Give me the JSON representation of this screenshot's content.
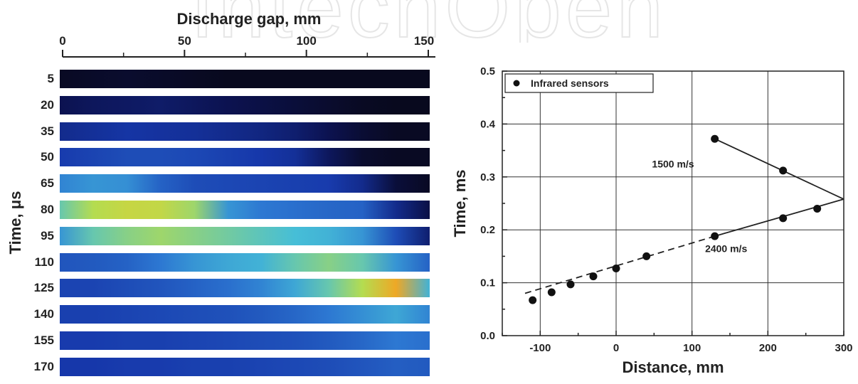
{
  "watermark": {
    "text": "IntechOpen"
  },
  "left_panel": {
    "xlabel": "Discharge gap, mm",
    "ylabel": "Time, μs",
    "xticks": [
      "0",
      "50",
      "100",
      "150"
    ],
    "xlim": [
      0,
      150
    ],
    "rows": [
      {
        "label": "5",
        "glow": [
          0.02,
          0.03,
          0.04,
          0.03,
          0.02,
          0.01,
          0.01,
          0.01,
          0.01,
          0.01,
          0.01,
          0.01
        ]
      },
      {
        "label": "20",
        "glow": [
          0.1,
          0.12,
          0.13,
          0.14,
          0.12,
          0.1,
          0.08,
          0.06,
          0.04,
          0.02,
          0.01,
          0.01
        ]
      },
      {
        "label": "35",
        "glow": [
          0.2,
          0.22,
          0.24,
          0.23,
          0.22,
          0.2,
          0.18,
          0.15,
          0.1,
          0.05,
          0.02,
          0.02
        ]
      },
      {
        "label": "50",
        "glow": [
          0.26,
          0.28,
          0.3,
          0.3,
          0.29,
          0.27,
          0.25,
          0.22,
          0.12,
          0.04,
          0.02,
          0.02
        ]
      },
      {
        "label": "65",
        "glow": [
          0.42,
          0.45,
          0.44,
          0.35,
          0.3,
          0.29,
          0.28,
          0.27,
          0.26,
          0.2,
          0.06,
          0.02
        ]
      },
      {
        "label": "80",
        "glow": [
          0.55,
          0.62,
          0.66,
          0.65,
          0.6,
          0.45,
          0.4,
          0.38,
          0.36,
          0.35,
          0.2,
          0.08
        ]
      },
      {
        "label": "95",
        "glow": [
          0.45,
          0.55,
          0.58,
          0.6,
          0.58,
          0.56,
          0.54,
          0.52,
          0.5,
          0.45,
          0.3,
          0.15
        ]
      },
      {
        "label": "110",
        "glow": [
          0.32,
          0.33,
          0.35,
          0.4,
          0.45,
          0.48,
          0.5,
          0.55,
          0.58,
          0.55,
          0.45,
          0.35
        ]
      },
      {
        "label": "125",
        "glow": [
          0.28,
          0.28,
          0.3,
          0.32,
          0.35,
          0.38,
          0.42,
          0.48,
          0.55,
          0.62,
          0.8,
          0.5
        ]
      },
      {
        "label": "140",
        "glow": [
          0.27,
          0.27,
          0.28,
          0.29,
          0.3,
          0.31,
          0.33,
          0.36,
          0.4,
          0.44,
          0.48,
          0.42
        ]
      },
      {
        "label": "155",
        "glow": [
          0.26,
          0.26,
          0.27,
          0.27,
          0.28,
          0.29,
          0.3,
          0.31,
          0.33,
          0.36,
          0.4,
          0.38
        ]
      },
      {
        "label": "170",
        "glow": [
          0.25,
          0.25,
          0.26,
          0.26,
          0.27,
          0.27,
          0.28,
          0.29,
          0.3,
          0.32,
          0.34,
          0.33
        ]
      }
    ]
  },
  "chart_data": {
    "type": "scatter",
    "xlabel": "Distance, mm",
    "ylabel": "Time, ms",
    "xlim": [
      -150,
      300
    ],
    "ylim": [
      0.0,
      0.5
    ],
    "xticks": [
      -100,
      0,
      100,
      200,
      300
    ],
    "yticks": [
      0.0,
      0.1,
      0.2,
      0.3,
      0.4,
      0.5
    ],
    "grid": true,
    "legend": {
      "placement": "top-left",
      "entries": [
        "Infrared sensors"
      ]
    },
    "series": [
      {
        "name": "Infrared sensors",
        "x": [
          -110,
          -85,
          -60,
          -30,
          0,
          40,
          130,
          220,
          265,
          130,
          220
        ],
        "y": [
          0.067,
          0.082,
          0.097,
          0.112,
          0.127,
          0.15,
          0.188,
          0.222,
          0.24,
          0.372,
          0.312
        ]
      }
    ],
    "lines": [
      {
        "style": "dashed",
        "x": [
          -120,
          130
        ],
        "y": [
          0.08,
          0.188
        ]
      },
      {
        "style": "solid",
        "x": [
          130,
          300
        ],
        "y": [
          0.188,
          0.258
        ]
      },
      {
        "style": "solid",
        "x": [
          130,
          300
        ],
        "y": [
          0.372,
          0.258
        ]
      }
    ],
    "annotations": [
      {
        "text": "1500 m/s",
        "x": 75,
        "y": 0.318
      },
      {
        "text": "2400 m/s",
        "x": 145,
        "y": 0.158
      }
    ]
  }
}
